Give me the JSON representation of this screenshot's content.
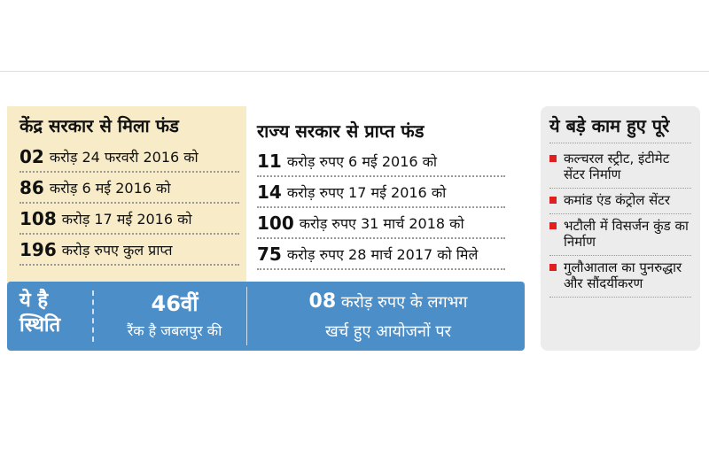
{
  "central": {
    "title": "केंद्र सरकार से मिला फंड",
    "rows": [
      {
        "amount": "02",
        "text": "करोड़ 24 फरवरी 2016 को"
      },
      {
        "amount": "86",
        "text": "करोड़ 6 मई 2016 को"
      },
      {
        "amount": "108",
        "text": "करोड़ 17 मई 2016 को"
      },
      {
        "amount": "196",
        "text": "करोड़ रुपए कुल प्राप्त"
      }
    ]
  },
  "state": {
    "title": "राज्य सरकार से प्राप्त फंड",
    "rows": [
      {
        "amount": "11",
        "text": "करोड़ रुपए 6 मई 2016 को"
      },
      {
        "amount": "14",
        "text": "करोड़ रुपए 17 मई 2016 को"
      },
      {
        "amount": "100",
        "text": "करोड़ रुपए 31 मार्च 2018 को"
      },
      {
        "amount": "75",
        "text": "करोड़ रुपए 28 मार्च 2017 को मिले"
      }
    ]
  },
  "status": {
    "label": "ये है स्थिति",
    "rank": "46वीं",
    "rank_text": "रैंक है जबलपुर की",
    "spend_amount": "08",
    "spend_text_1": "करोड़ रुपए के लगभग",
    "spend_text_2": "खर्च हुए आयोजनों पर"
  },
  "works": {
    "title": "ये बड़े काम हुए पूरे",
    "items": [
      "कल्चरल स्ट्रीट, इंटीमेट सेंटर निर्माण",
      "कमांड एंड कंट्रोल सेंटर",
      "भटौली में विसर्जन कुंड का निर्माण",
      "गुलौआताल का पुनरुद्धार और सौंदर्यीकरण"
    ]
  }
}
